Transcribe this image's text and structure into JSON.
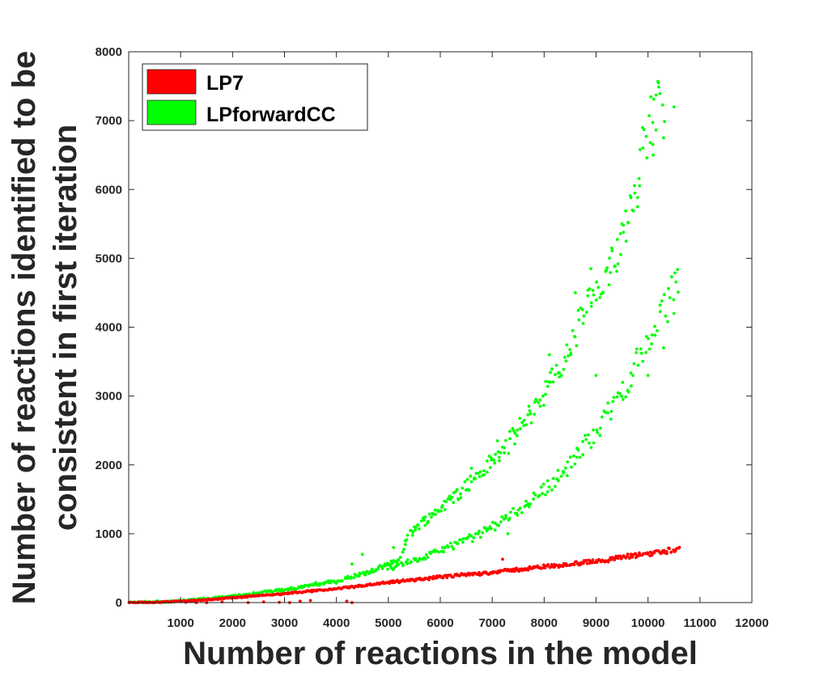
{
  "chart_data": {
    "type": "scatter",
    "xlabel": "Number of reactions in the model",
    "ylabel": [
      "Number of reactions identified to be",
      "consistent in first iteration"
    ],
    "xlim": [
      0,
      12000
    ],
    "ylim": [
      0,
      8000
    ],
    "xticks": [
      "1000",
      "2000",
      "3000",
      "4000",
      "5000",
      "6000",
      "7000",
      "8000",
      "9000",
      "10000",
      "11000",
      "12000"
    ],
    "yticks": [
      "0",
      "1000",
      "2000",
      "3000",
      "4000",
      "5000",
      "6000",
      "7000",
      "8000"
    ],
    "grid": false,
    "legend_position": "top-left",
    "series": [
      {
        "name": "LP7",
        "color": "#ff0000",
        "trend_x": [
          0,
          500,
          1000,
          1500,
          2000,
          3000,
          4000,
          5000,
          6000,
          7000,
          8000,
          9000,
          10000,
          10600
        ],
        "trend_y": [
          0,
          5,
          20,
          40,
          70,
          130,
          200,
          290,
          370,
          440,
          520,
          600,
          710,
          780
        ],
        "extra_points": [
          [
            1100,
            5
          ],
          [
            1300,
            0
          ],
          [
            1500,
            0
          ],
          [
            1800,
            10
          ],
          [
            2300,
            0
          ],
          [
            2600,
            10
          ],
          [
            2900,
            5
          ],
          [
            3100,
            0
          ],
          [
            3300,
            20
          ],
          [
            3500,
            30
          ],
          [
            4200,
            20
          ],
          [
            4300,
            0
          ],
          [
            7200,
            630
          ]
        ]
      },
      {
        "name": "LPforwardCC",
        "color": "#00ff00",
        "branches": [
          {
            "x": [
              0,
              1000,
              2000,
              3000,
              4000,
              4800,
              5200,
              5400,
              5800,
              6200,
              6800,
              7200,
              7600,
              8000,
              8400,
              8800,
              9200,
              9600,
              10000,
              10300
            ],
            "y": [
              0,
              20,
              90,
              190,
              310,
              480,
              620,
              1000,
              1250,
              1500,
              1900,
              2200,
              2600,
              3050,
              3500,
              4300,
              4600,
              5600,
              6900,
              7400
            ]
          },
          {
            "x": [
              5000,
              5600,
              6200,
              6800,
              7200,
              7600,
              8000,
              8400,
              8800,
              9200,
              9600,
              10000,
              10300,
              10600
            ],
            "y": [
              500,
              630,
              820,
              1000,
              1200,
              1400,
              1650,
              1900,
              2300,
              2700,
              3200,
              3800,
              4200,
              4750
            ]
          }
        ],
        "extra_points": [
          [
            10200,
            7550
          ],
          [
            10500,
            7200
          ],
          [
            10100,
            6500
          ],
          [
            10300,
            6750
          ],
          [
            9500,
            5500
          ],
          [
            9700,
            5700
          ],
          [
            9000,
            3300
          ],
          [
            9800,
            5750
          ],
          [
            9300,
            5150
          ],
          [
            10000,
            3300
          ],
          [
            10500,
            4200
          ],
          [
            10300,
            3700
          ],
          [
            8600,
            4500
          ],
          [
            8900,
            4850
          ],
          [
            8100,
            3600
          ],
          [
            7100,
            2350
          ],
          [
            6600,
            1950
          ],
          [
            7300,
            1000
          ],
          [
            5500,
            1100
          ],
          [
            4500,
            700
          ],
          [
            5100,
            800
          ],
          [
            4300,
            560
          ]
        ]
      }
    ]
  }
}
